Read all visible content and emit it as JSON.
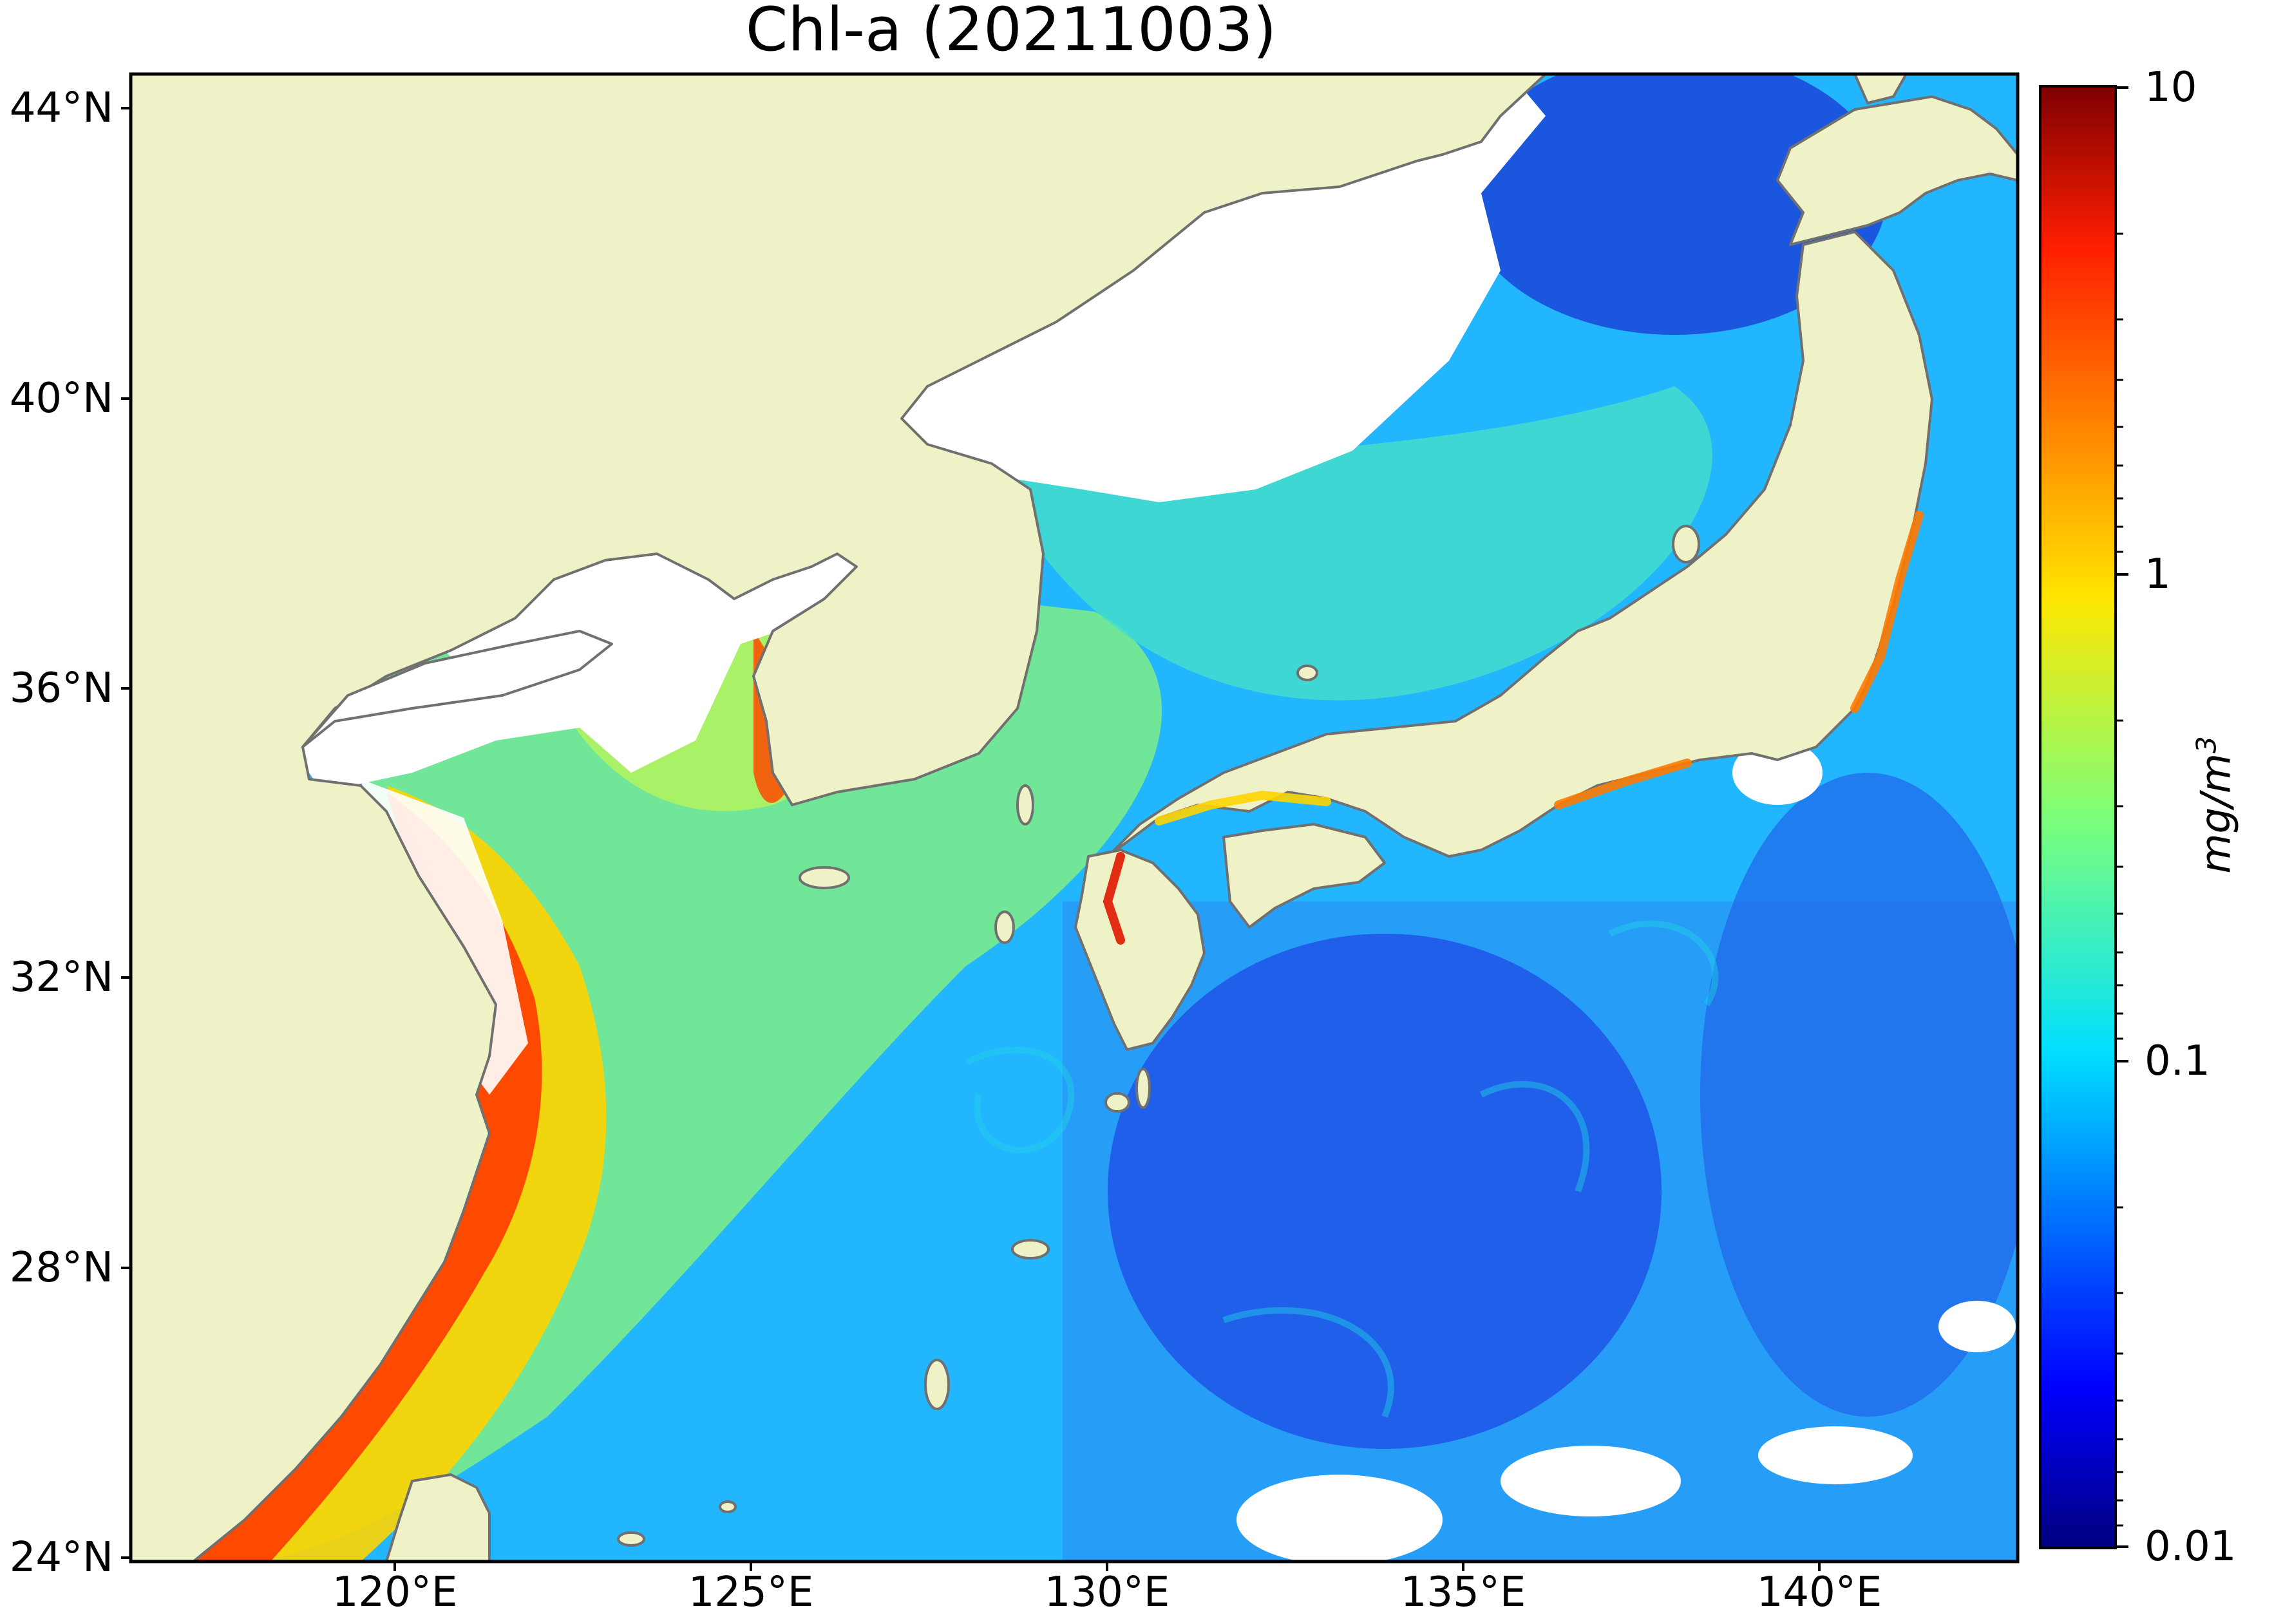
{
  "map": {
    "title": "Chl-a (20211003)",
    "lat_labels": [
      "44°N",
      "40°N",
      "36°N",
      "32°N",
      "28°N",
      "24°N"
    ],
    "lon_labels": [
      "120°E",
      "125°E",
      "130°E",
      "135°E",
      "140°E"
    ],
    "lat_values": [
      44,
      40,
      36,
      32,
      28,
      24
    ],
    "lon_values": [
      120,
      125,
      130,
      135,
      140
    ],
    "extent": {
      "lon": [
        116.5,
        143.0
      ],
      "lat": [
        23.95,
        44.5
      ]
    },
    "colors": {
      "land": "#eff2c6",
      "no_data": "#ffffff",
      "coastline": "#707070"
    }
  },
  "colorbar": {
    "label_main": "mg/m",
    "label_sup": "3",
    "scale": "log",
    "range": [
      0.01,
      10
    ],
    "tick_labels": [
      "10",
      "1",
      "0.1",
      "0.01"
    ],
    "tick_values": [
      10,
      1,
      0.1,
      0.01
    ],
    "colormap": "jet"
  }
}
